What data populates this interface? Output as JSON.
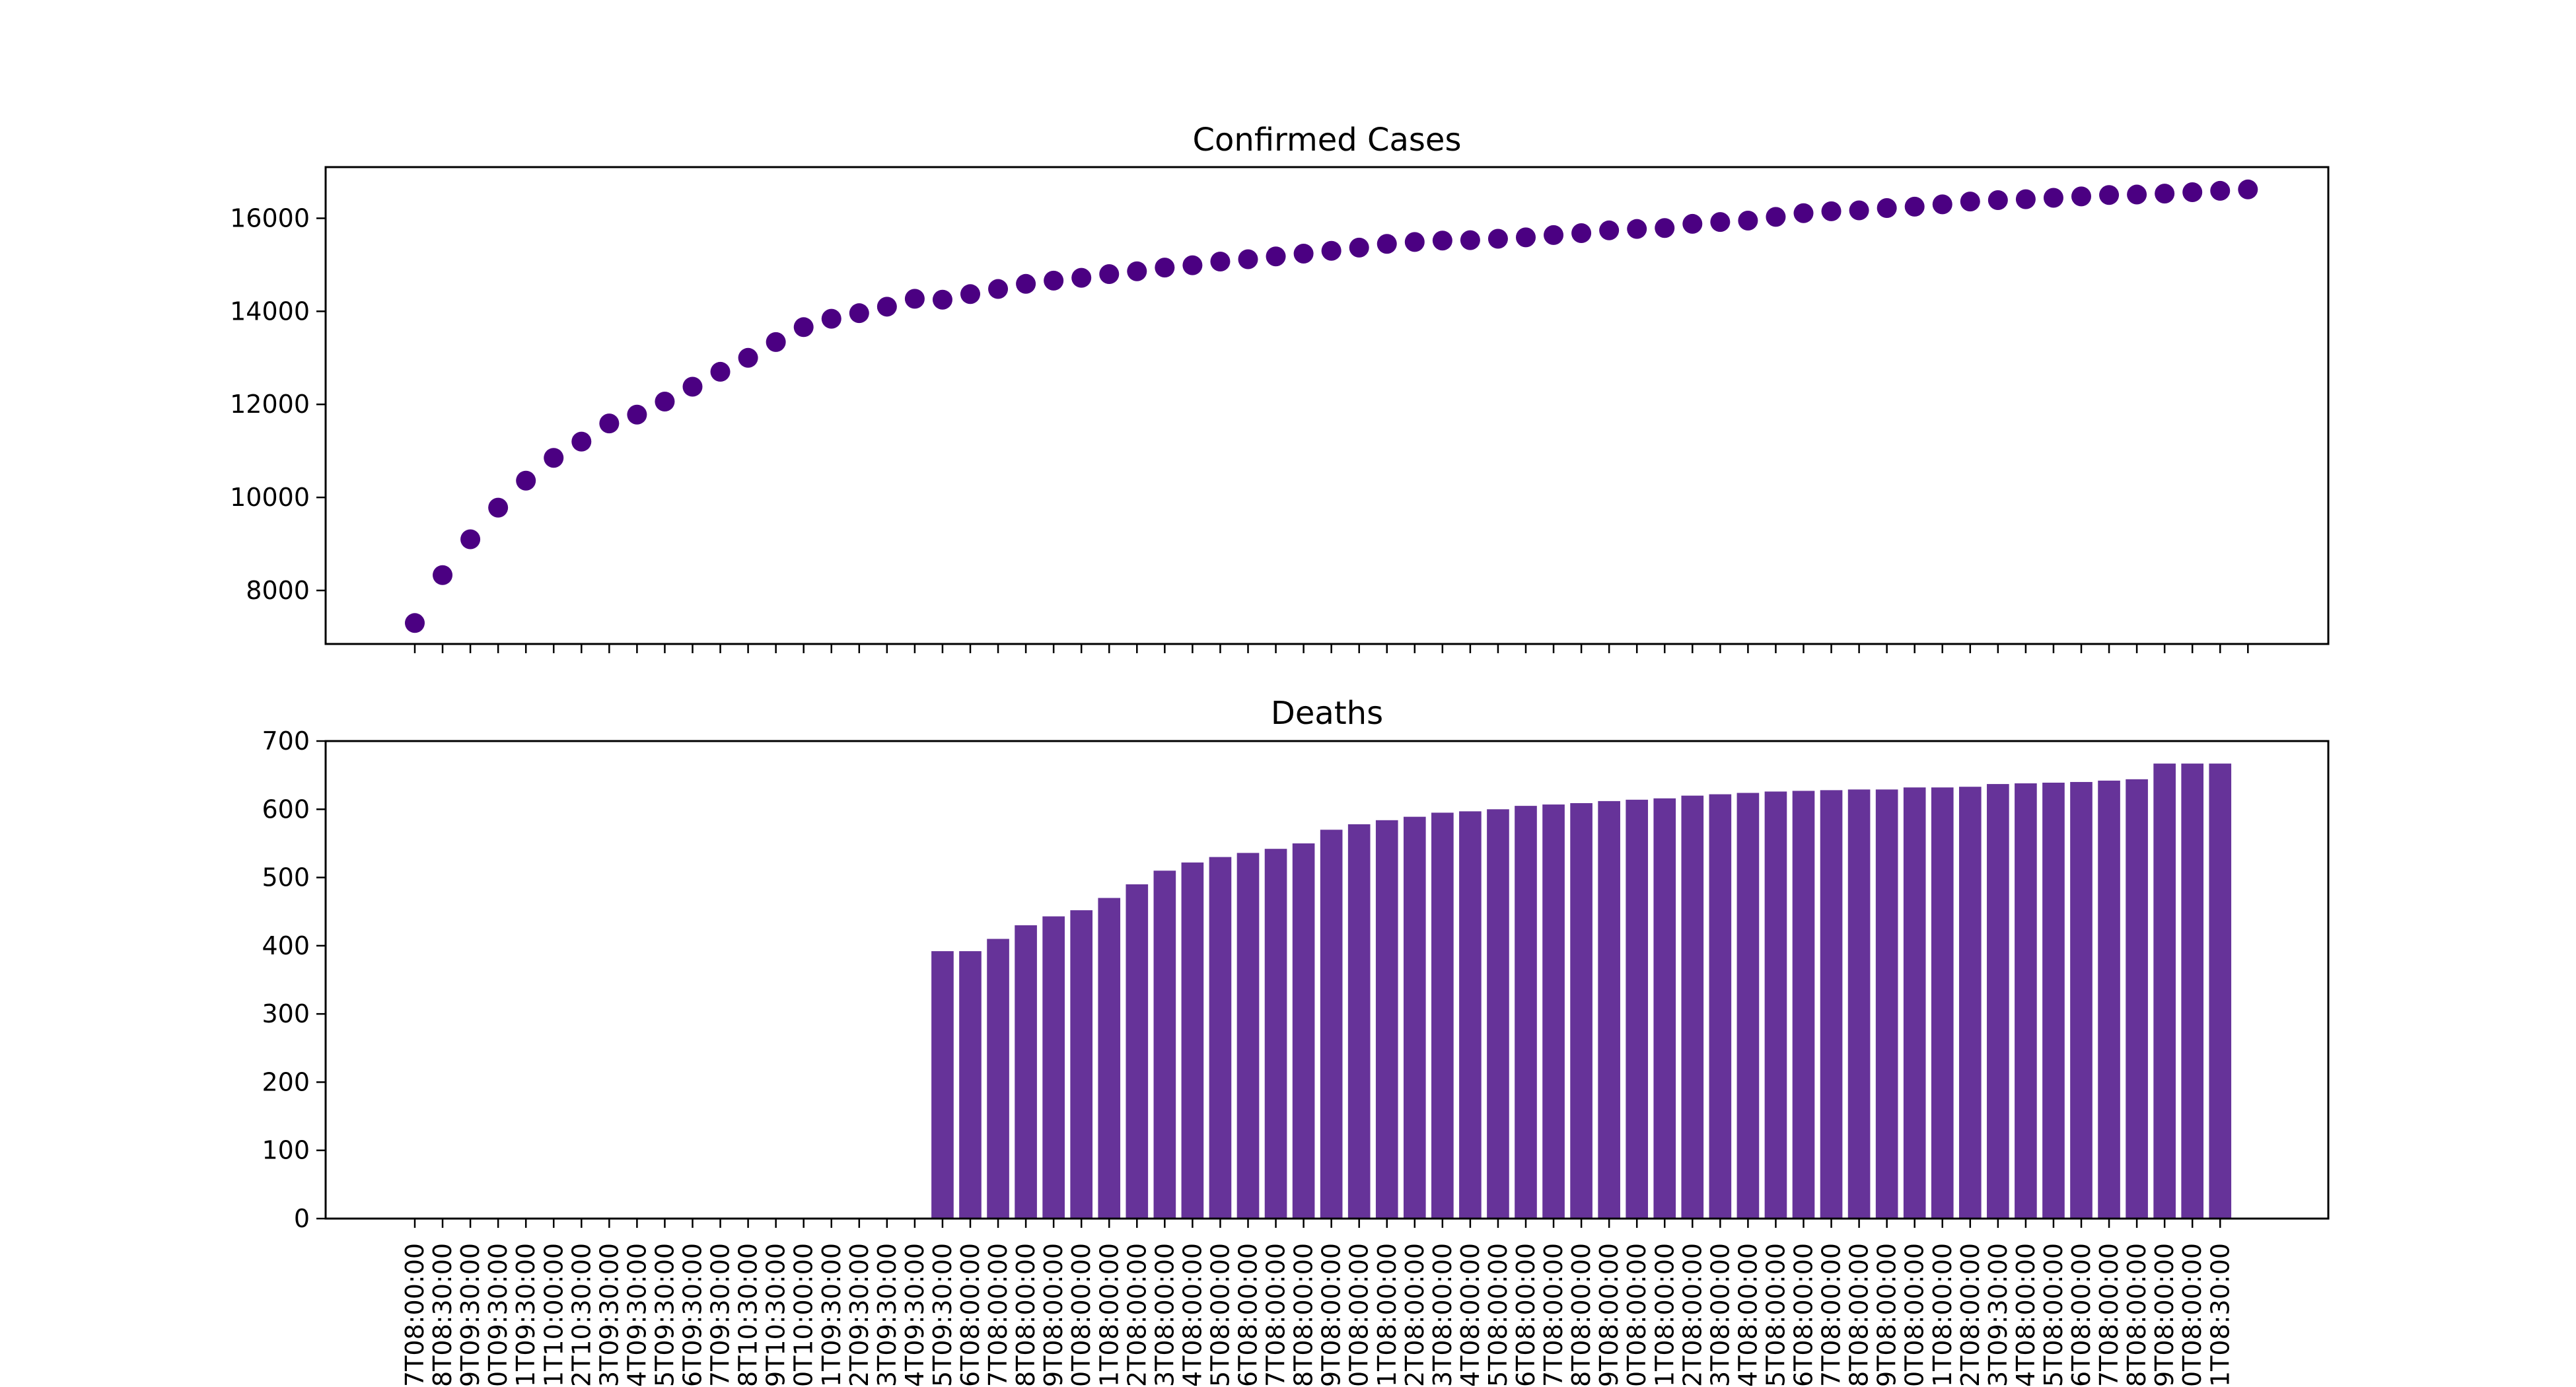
{
  "chart_data": [
    {
      "type": "scatter",
      "title": "Confirmed Cases",
      "xlabel": "",
      "ylabel": "",
      "ylim": [
        6850,
        17100
      ],
      "yticks": [
        8000,
        10000,
        12000,
        14000,
        16000
      ],
      "values": [
        7300,
        8330,
        9100,
        9780,
        10360,
        10850,
        11200,
        11590,
        11780,
        12060,
        12380,
        12700,
        13000,
        13340,
        13660,
        13840,
        13960,
        14100,
        14270,
        14250,
        14370,
        14480,
        14590,
        14660,
        14720,
        14800,
        14860,
        14940,
        14990,
        15070,
        15120,
        15180,
        15240,
        15300,
        15370,
        15450,
        15490,
        15520,
        15530,
        15560,
        15590,
        15640,
        15680,
        15740,
        15770,
        15790,
        15880,
        15920,
        15950,
        16030,
        16110,
        16150,
        16170,
        16220,
        16250,
        16300,
        16360,
        16390,
        16410,
        16440,
        16470,
        16500,
        16510,
        16530,
        16560,
        16590,
        16620
      ],
      "marker_color": "#4b0082",
      "grid": false
    },
    {
      "type": "bar",
      "title": "Deaths",
      "xlabel": "",
      "ylabel": "",
      "ylim": [
        0,
        700
      ],
      "yticks": [
        0,
        100,
        200,
        300,
        400,
        500,
        600,
        700
      ],
      "categories": [
        "7T08:00:00",
        "8T08:30:00",
        "9T09:30:00",
        "0T09:30:00",
        "1T09:30:00",
        "1T10:00:00",
        "2T10:30:00",
        "3T09:30:00",
        "4T09:30:00",
        "5T09:30:00",
        "6T09:30:00",
        "7T09:30:00",
        "8T10:30:00",
        "9T10:30:00",
        "0T10:00:00",
        "1T09:30:00",
        "2T09:30:00",
        "3T09:30:00",
        "4T09:30:00",
        "5T09:30:00",
        "6T08:00:00",
        "7T08:00:00",
        "8T08:00:00",
        "9T08:00:00",
        "0T08:00:00",
        "1T08:00:00",
        "2T08:00:00",
        "3T08:00:00",
        "4T08:00:00",
        "5T08:00:00",
        "6T08:00:00",
        "7T08:00:00",
        "8T08:00:00",
        "9T08:00:00",
        "0T08:00:00",
        "1T08:00:00",
        "2T08:00:00",
        "3T08:00:00",
        "4T08:00:00",
        "5T08:00:00",
        "6T08:00:00",
        "7T08:00:00",
        "8T08:00:00",
        "9T08:00:00",
        "0T08:00:00",
        "1T08:00:00",
        "2T08:00:00",
        "3T08:00:00",
        "4T08:00:00",
        "5T08:00:00",
        "6T08:00:00",
        "7T08:00:00",
        "8T08:00:00",
        "9T08:00:00",
        "0T08:00:00",
        "1T08:00:00",
        "2T08:00:00",
        "3T09:30:00",
        "4T08:00:00",
        "5T08:00:00",
        "6T08:00:00",
        "7T08:00:00",
        "8T08:00:00",
        "9T08:00:00",
        "0T08:00:00",
        "1T08:30:00"
      ],
      "values": [
        0,
        0,
        0,
        0,
        0,
        0,
        0,
        0,
        0,
        0,
        0,
        0,
        0,
        0,
        0,
        0,
        0,
        0,
        0,
        392,
        392,
        410,
        430,
        443,
        452,
        470,
        490,
        510,
        522,
        530,
        536,
        542,
        550,
        570,
        578,
        584,
        589,
        595,
        597,
        600,
        605,
        607,
        609,
        612,
        614,
        616,
        620,
        622,
        624,
        626,
        627,
        628,
        629,
        629,
        632,
        632,
        633,
        637,
        638,
        639,
        640,
        642,
        644,
        667,
        667,
        667
      ],
      "bar_color": "#663399",
      "grid": false
    }
  ]
}
